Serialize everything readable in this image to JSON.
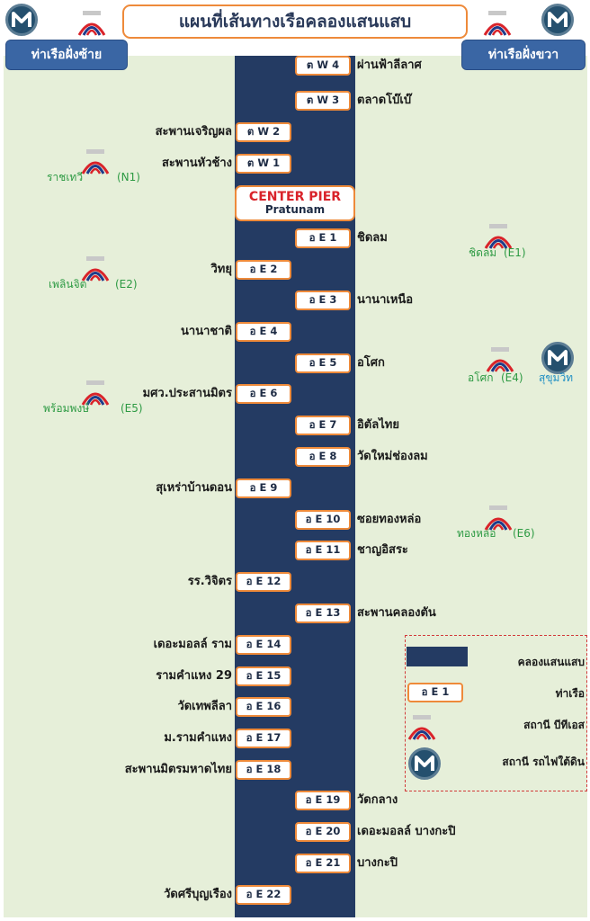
{
  "title": "แผนที่เส้นทางเรือคลองแสนแสบ",
  "left_tab": "ท่าเรือฝั่งซ้าย",
  "right_tab": "ท่าเรือฝั่งขวา",
  "metro_glyph": "M",
  "colors": {
    "canal": "#243b63",
    "accent_orange": "#ee8a3a",
    "panel_green": "#e6efd9",
    "tab_blue": "#3a66a4",
    "bts_name_green": "#2d9a43",
    "metro_name_blue": "#1f8fc4",
    "center_red": "#d9232a"
  },
  "center_pier": {
    "name": "CENTER PIER",
    "sub": "Pratunam"
  },
  "piers_right": [
    {
      "code": "ต W 4",
      "name": "ผ่านฟ้าลีลาศ"
    },
    {
      "code": "ต W 3",
      "name": "ตลาดโบ๊เบ๊"
    },
    {
      "code": "อ E 1",
      "name": "ชิดลม"
    },
    {
      "code": "อ E 3",
      "name": "นานาเหนือ"
    },
    {
      "code": "อ E 5",
      "name": "อโศก"
    },
    {
      "code": "อ E 7",
      "name": "อิตัลไทย"
    },
    {
      "code": "อ E 8",
      "name": "วัดใหม่ช่องลม"
    },
    {
      "code": "อ E 10",
      "name": "ซอยทองหล่อ"
    },
    {
      "code": "อ E 11",
      "name": "ชาญอิสระ"
    },
    {
      "code": "อ E 13",
      "name": "สะพานคลองตัน"
    },
    {
      "code": "อ E 19",
      "name": "วัดกลาง"
    },
    {
      "code": "อ E 20",
      "name": "เดอะมอลล์ บางกะปิ"
    },
    {
      "code": "อ E 21",
      "name": "บางกะปิ"
    }
  ],
  "piers_left": [
    {
      "code": "ต W 2",
      "name": "สะพานเจริญผล"
    },
    {
      "code": "ต W 1",
      "name": "สะพานหัวช้าง"
    },
    {
      "code": "อ E 2",
      "name": "วิทยุ"
    },
    {
      "code": "อ E 4",
      "name": "นานาชาติ"
    },
    {
      "code": "อ E 6",
      "name": "มศว.ประสานมิตร"
    },
    {
      "code": "อ E 9",
      "name": "สุเหร่าบ้านดอน"
    },
    {
      "code": "อ E 12",
      "name": "รร.วิจิตร"
    },
    {
      "code": "อ E 14",
      "name": "เดอะมอลล์ ราม"
    },
    {
      "code": "อ E 15",
      "name": "รามคำแหง 29"
    },
    {
      "code": "อ E 16",
      "name": "วัดเทพลีลา"
    },
    {
      "code": "อ E 17",
      "name": "ม.รามคำแหง"
    },
    {
      "code": "อ E 18",
      "name": "สะพานมิตรมหาดไทย"
    },
    {
      "code": "อ E 22",
      "name": "วัดศรีบุญเรือง"
    }
  ],
  "stations": [
    {
      "name": "ราชเทวี",
      "code": "(N1)"
    },
    {
      "name": "เพลินจิต",
      "code": "(E2)"
    },
    {
      "name": "พร้อมพงษ์",
      "code": "(E5)"
    },
    {
      "name": "ชิดลม",
      "code": "(E1)"
    },
    {
      "name": "อโศก",
      "code": "(E4)"
    },
    {
      "name": "ทองหล่อ",
      "code": "(E6)"
    }
  ],
  "metro_station": "สุขุมวิท",
  "legend": {
    "canal": "คลองแสนแสบ",
    "pier_sample": "อ E 1",
    "pier": "ท่าเรือ",
    "bts": "สถานี บีทีเอส",
    "mrt": "สถานี รถไฟใต้ดิน"
  }
}
